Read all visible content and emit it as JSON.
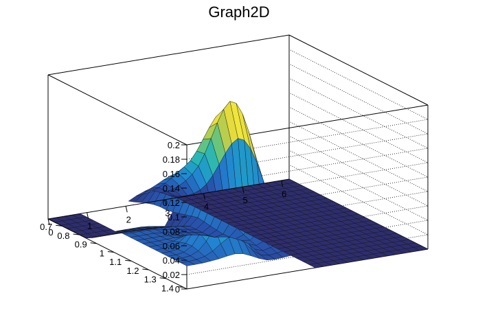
{
  "chart_data": {
    "type": "surface",
    "title": "Graph2D",
    "xlabel": "",
    "ylabel": "",
    "zlabel": "",
    "xlim": [
      0,
      6.2
    ],
    "ylim": [
      0.62,
      1.42
    ],
    "zlim": [
      0,
      0.2
    ],
    "x_ticks": [
      "0",
      "1",
      "2",
      "3",
      "4",
      "5",
      "6"
    ],
    "y_ticks": [
      "0.7",
      "0.8",
      "0.9",
      "1",
      "1.1",
      "1.2",
      "1.3",
      "1.4"
    ],
    "z_ticks": [
      "0",
      "0.02",
      "0.04",
      "0.06",
      "0.08",
      "0.1",
      "0.12",
      "0.14",
      "0.16",
      "0.18",
      "0.2"
    ],
    "grid": true,
    "colormap": "viridis-like",
    "features": [
      {
        "name": "tall ridge",
        "x_range": [
          2.0,
          3.3
        ],
        "y_range": [
          0.66,
          1.25
        ],
        "peak_z": 0.17,
        "peak_x": 2.8,
        "peak_y": 1.1
      },
      {
        "name": "broad plateau",
        "x_range": [
          0,
          3.0
        ],
        "y_range": [
          0.9,
          1.4
        ],
        "z": 0.03
      },
      {
        "name": "bump",
        "x": 1.3,
        "y": 1.3,
        "z": 0.11
      },
      {
        "name": "gap (empty region)",
        "x_range": [
          1.0,
          1.95
        ],
        "y_range": [
          0.62,
          0.85
        ]
      }
    ]
  }
}
